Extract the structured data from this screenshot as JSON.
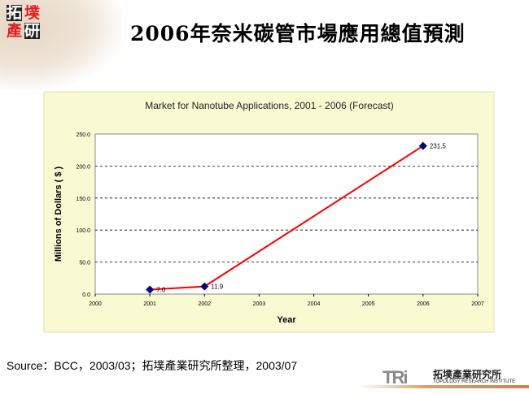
{
  "header": {
    "title": "2006年奈米碳管市場應用總值預測",
    "logo_text": "拓墣產研"
  },
  "source": "Source：BCC，2003/03；拓墣產業研究所整理，2003/07",
  "footer": {
    "logo_mark": "TRi",
    "org_cn": "拓墣產業研究所",
    "org_en": "TOPOLOGY RESEARCH INSTITUTE"
  },
  "colors": {
    "panel": "#fafad2",
    "line": "#ff0000",
    "marker": "#000080"
  },
  "chart_data": {
    "type": "line",
    "title": "Market for Nanotube Applications, 2001 - 2006 (Forecast)",
    "xlabel": "Year",
    "ylabel": "Millions of Dollars ( $ )",
    "xlim": [
      2000,
      2007
    ],
    "ylim": [
      0,
      250
    ],
    "xticks": [
      "2000",
      "2001",
      "2002",
      "2003",
      "2004",
      "2005",
      "2006",
      "2007"
    ],
    "yticks": [
      "0.0",
      "50.0",
      "100.0",
      "150.0",
      "200.0",
      "250.0"
    ],
    "grid": "horizontal dashed",
    "x": [
      2001,
      2002,
      2006
    ],
    "values": [
      7.0,
      11.9,
      231.5
    ],
    "data_labels": [
      "7.0",
      "11.9",
      "231.5"
    ]
  }
}
